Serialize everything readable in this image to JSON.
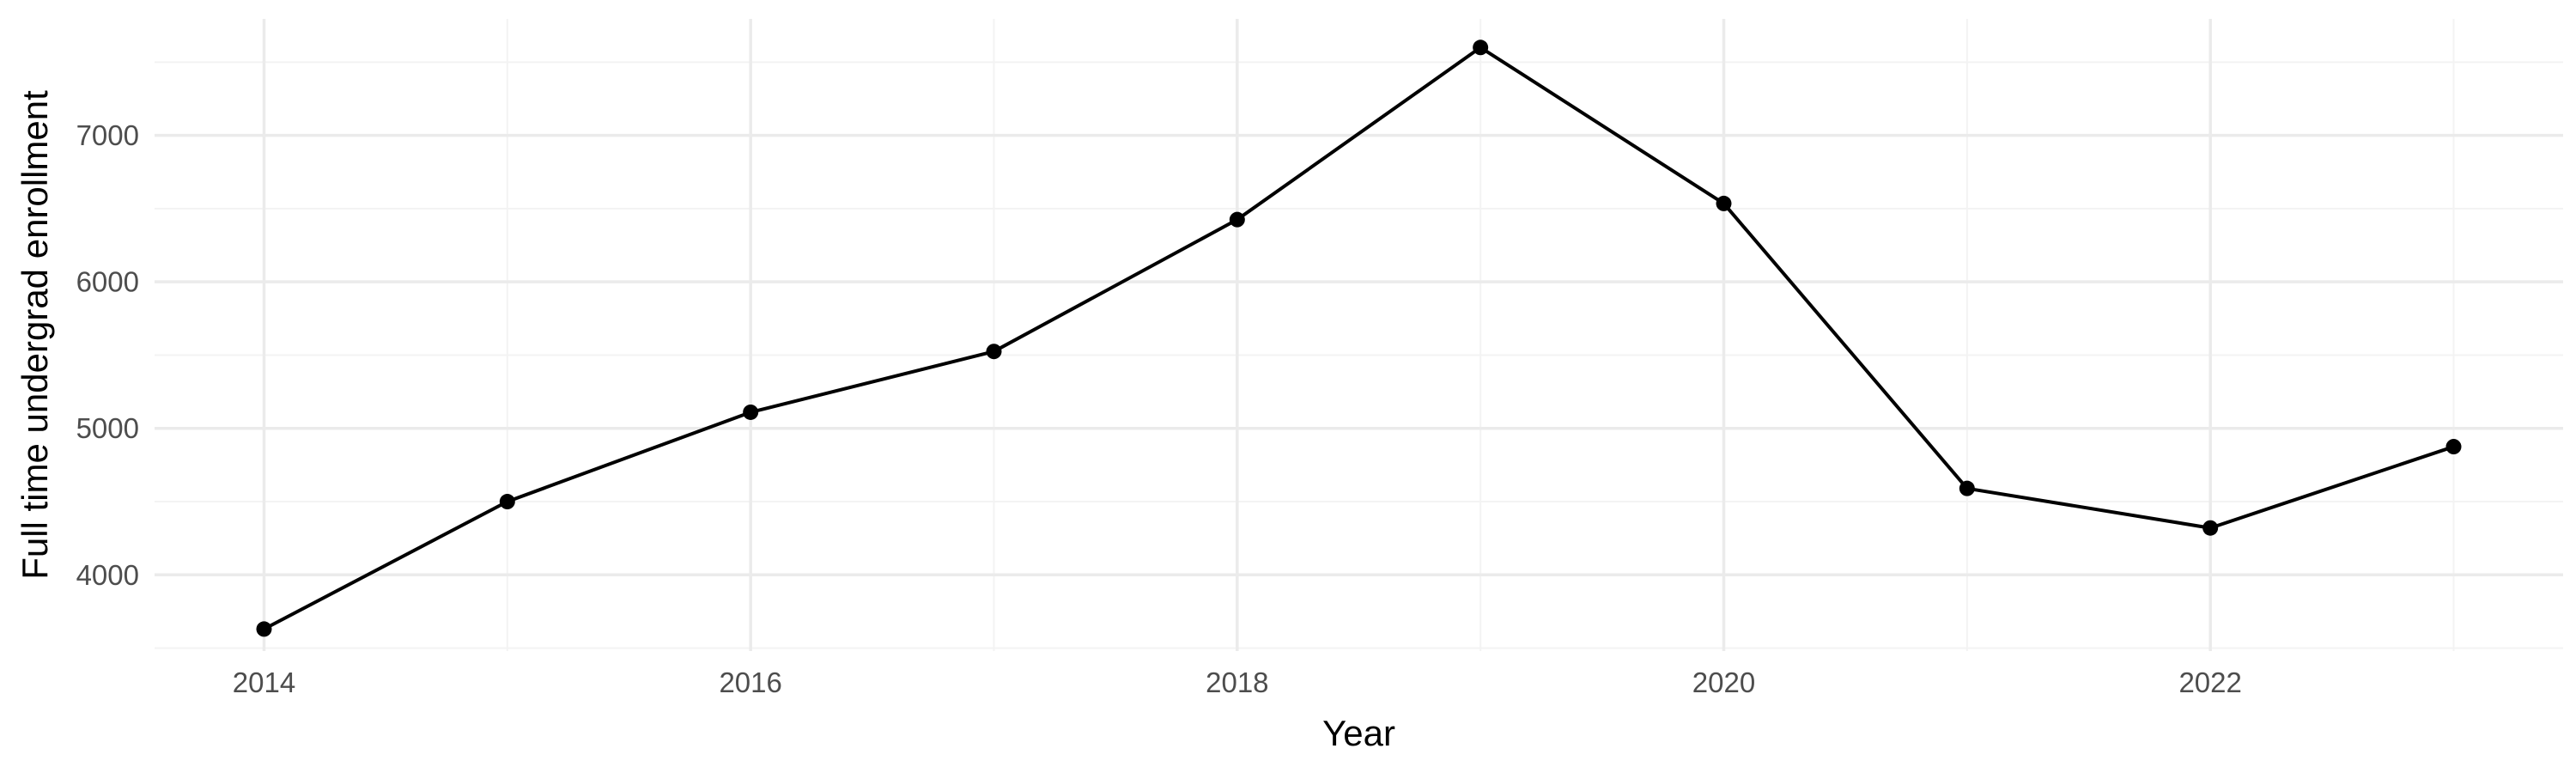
{
  "chart_data": {
    "type": "line",
    "title": "",
    "xlabel": "Year",
    "ylabel": "Full time undergrad enrollment",
    "x": [
      2014,
      2015,
      2016,
      2017,
      2018,
      2019,
      2020,
      2021,
      2022,
      2023
    ],
    "series": [
      {
        "values": [
          3630,
          4500,
          5110,
          5525,
          6425,
          7600,
          6535,
          4590,
          4320,
          4875
        ]
      }
    ],
    "xlim": [
      2013.55,
      2023.45
    ],
    "ylim": [
      3480,
      7795
    ],
    "x_ticks": [
      2014,
      2016,
      2018,
      2020,
      2022
    ],
    "x_minor_ticks": [
      2015,
      2017,
      2019,
      2021,
      2023
    ],
    "y_ticks": [
      4000,
      5000,
      6000,
      7000
    ],
    "y_minor_ticks": [
      3500,
      4500,
      5500,
      6500,
      7500
    ],
    "x_tick_labels": [
      "2014",
      "2016",
      "2018",
      "2020",
      "2022"
    ],
    "y_tick_labels": [
      "4000",
      "5000",
      "6000",
      "7000"
    ],
    "grid": true,
    "legend": "none",
    "line_color": "#000000",
    "background": "#ffffff"
  }
}
